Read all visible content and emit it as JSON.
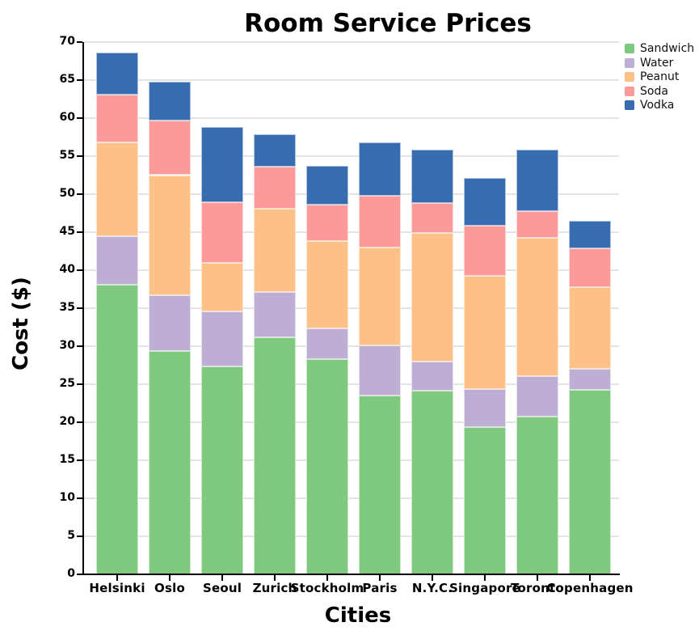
{
  "title": "Room Service Prices",
  "chart_data": {
    "type": "bar",
    "stacked": true,
    "title": "Room Service Prices",
    "xlabel": "Cities",
    "ylabel": "Cost ($)",
    "categories": [
      "Helsinki",
      "Oslo",
      "Seoul",
      "Zurich",
      "Stockholm",
      "Paris",
      "N.Y.C.",
      "Singapore",
      "Toronto",
      "Copenhagen"
    ],
    "series": [
      {
        "name": "Sandwich",
        "color": "#7fc97f",
        "values": [
          38.1,
          29.4,
          27.3,
          31.2,
          28.3,
          23.5,
          24.1,
          19.4,
          20.7,
          24.3
        ]
      },
      {
        "name": "Water",
        "color": "#beaed4",
        "values": [
          6.4,
          7.3,
          7.3,
          5.9,
          4.0,
          6.6,
          3.9,
          5.0,
          5.4,
          2.7
        ]
      },
      {
        "name": "Peanut",
        "color": "#fdc086",
        "values": [
          12.3,
          15.8,
          6.4,
          11.0,
          11.5,
          12.9,
          16.9,
          14.9,
          18.2,
          10.8
        ]
      },
      {
        "name": "Soda",
        "color": "#fb9a99",
        "values": [
          6.3,
          7.2,
          7.9,
          5.5,
          4.8,
          6.8,
          3.9,
          6.6,
          3.5,
          5.1
        ]
      },
      {
        "name": "Vodka",
        "color": "#386cb0",
        "values": [
          5.5,
          5.1,
          9.9,
          4.3,
          5.1,
          7.0,
          7.1,
          6.2,
          8.1,
          3.6
        ]
      }
    ],
    "stack_totals": [
      68.6,
      64.8,
      58.8,
      57.9,
      53.7,
      56.8,
      55.9,
      52.1,
      55.9,
      46.5
    ],
    "ylim": [
      0,
      70
    ],
    "yticks": [
      0,
      5,
      10,
      15,
      20,
      25,
      30,
      35,
      40,
      45,
      50,
      55,
      60,
      65,
      70
    ],
    "grid": "horizontal",
    "grid_color": "#e3e3e3",
    "axis_color": "#000000",
    "legend_position": "upper right outside plot",
    "legend_entries": [
      "Sandwich",
      "Water",
      "Peanut",
      "Soda",
      "Vodka"
    ]
  }
}
